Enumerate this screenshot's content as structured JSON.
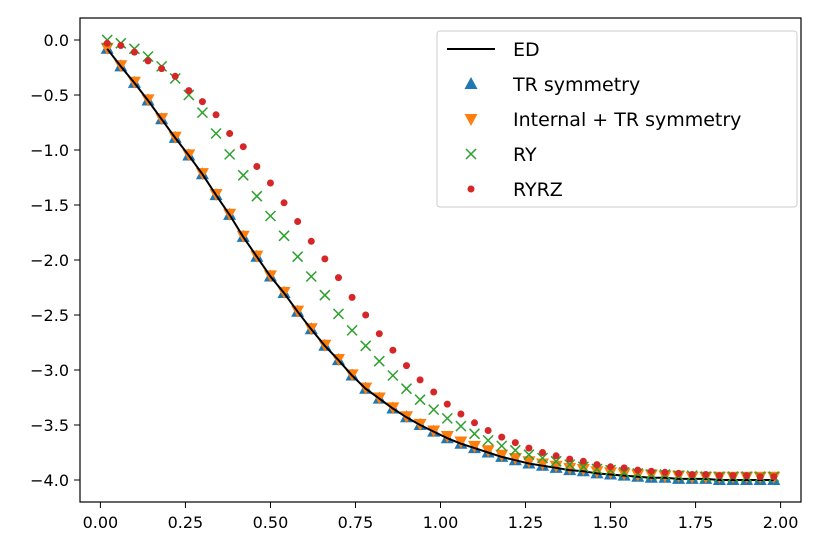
{
  "chart_data": {
    "type": "line",
    "title": "",
    "xlabel": "",
    "ylabel": "",
    "xlim": [
      -0.06,
      2.06
    ],
    "ylim": [
      -4.2,
      0.2
    ],
    "xticks": [
      "0.00",
      "0.25",
      "0.50",
      "0.75",
      "1.00",
      "1.25",
      "1.50",
      "1.75",
      "2.00"
    ],
    "yticks": [
      "0.0",
      "−0.5",
      "−1.0",
      "−1.5",
      "−2.0",
      "−2.5",
      "−3.0",
      "−3.5",
      "−4.0"
    ],
    "legend_position": "top-right",
    "series": [
      {
        "name": "ED",
        "style": "line",
        "color": "#000000",
        "x": [
          0.02,
          0.06,
          0.1,
          0.14,
          0.18,
          0.22,
          0.26,
          0.3,
          0.34,
          0.38,
          0.42,
          0.46,
          0.5,
          0.54,
          0.58,
          0.62,
          0.66,
          0.7,
          0.74,
          0.78,
          0.82,
          0.86,
          0.9,
          0.94,
          0.98,
          1.02,
          1.06,
          1.1,
          1.14,
          1.18,
          1.22,
          1.26,
          1.3,
          1.34,
          1.38,
          1.42,
          1.46,
          1.5,
          1.54,
          1.58,
          1.62,
          1.66,
          1.7,
          1.74,
          1.78,
          1.82,
          1.86,
          1.9,
          1.94,
          1.98
        ],
        "y": [
          -0.08,
          -0.24,
          -0.39,
          -0.55,
          -0.72,
          -0.89,
          -1.05,
          -1.22,
          -1.41,
          -1.59,
          -1.79,
          -1.97,
          -2.15,
          -2.3,
          -2.47,
          -2.63,
          -2.78,
          -2.91,
          -3.05,
          -3.17,
          -3.26,
          -3.35,
          -3.43,
          -3.5,
          -3.56,
          -3.62,
          -3.67,
          -3.71,
          -3.75,
          -3.79,
          -3.82,
          -3.85,
          -3.87,
          -3.89,
          -3.91,
          -3.92,
          -3.94,
          -3.95,
          -3.96,
          -3.97,
          -3.98,
          -3.98,
          -3.99,
          -3.99,
          -3.99,
          -4.0,
          -4.0,
          -4.0,
          -4.0,
          -4.0
        ]
      },
      {
        "name": "TR symmetry",
        "style": "triangle-up",
        "color": "#1f77b4",
        "x": [
          0.02,
          0.06,
          0.1,
          0.14,
          0.18,
          0.22,
          0.26,
          0.3,
          0.34,
          0.38,
          0.42,
          0.46,
          0.5,
          0.54,
          0.58,
          0.62,
          0.66,
          0.7,
          0.74,
          0.78,
          0.82,
          0.86,
          0.9,
          0.94,
          0.98,
          1.02,
          1.06,
          1.1,
          1.14,
          1.18,
          1.22,
          1.26,
          1.3,
          1.34,
          1.38,
          1.42,
          1.46,
          1.5,
          1.54,
          1.58,
          1.62,
          1.66,
          1.7,
          1.74,
          1.78,
          1.82,
          1.86,
          1.9,
          1.94,
          1.98
        ],
        "y": [
          -0.08,
          -0.24,
          -0.39,
          -0.55,
          -0.72,
          -0.89,
          -1.05,
          -1.22,
          -1.41,
          -1.59,
          -1.79,
          -1.97,
          -2.15,
          -2.3,
          -2.47,
          -2.63,
          -2.78,
          -2.91,
          -3.05,
          -3.17,
          -3.26,
          -3.35,
          -3.43,
          -3.5,
          -3.56,
          -3.62,
          -3.67,
          -3.71,
          -3.75,
          -3.79,
          -3.82,
          -3.85,
          -3.87,
          -3.89,
          -3.91,
          -3.92,
          -3.94,
          -3.95,
          -3.96,
          -3.97,
          -3.98,
          -3.98,
          -3.99,
          -3.99,
          -3.99,
          -4.0,
          -4.0,
          -4.0,
          -4.0,
          -4.0
        ]
      },
      {
        "name": "Internal + TR symmetry",
        "style": "triangle-down",
        "color": "#ff7f0e",
        "x": [
          0.02,
          0.06,
          0.1,
          0.14,
          0.18,
          0.22,
          0.26,
          0.3,
          0.34,
          0.38,
          0.42,
          0.46,
          0.5,
          0.54,
          0.58,
          0.62,
          0.66,
          0.7,
          0.74,
          0.78,
          0.82,
          0.86,
          0.9,
          0.94,
          0.98,
          1.02,
          1.06,
          1.1,
          1.14,
          1.18,
          1.22,
          1.26,
          1.3,
          1.34,
          1.38,
          1.42,
          1.46,
          1.5,
          1.54,
          1.58,
          1.62,
          1.66,
          1.7,
          1.74,
          1.78,
          1.82,
          1.86,
          1.9,
          1.94,
          1.98
        ],
        "y": [
          -0.07,
          -0.23,
          -0.38,
          -0.54,
          -0.71,
          -0.88,
          -1.04,
          -1.21,
          -1.4,
          -1.58,
          -1.78,
          -1.96,
          -2.14,
          -2.29,
          -2.46,
          -2.62,
          -2.77,
          -2.9,
          -3.04,
          -3.16,
          -3.25,
          -3.34,
          -3.42,
          -3.49,
          -3.55,
          -3.6,
          -3.65,
          -3.69,
          -3.73,
          -3.77,
          -3.8,
          -3.83,
          -3.85,
          -3.87,
          -3.89,
          -3.9,
          -3.92,
          -3.93,
          -3.94,
          -3.95,
          -3.95,
          -3.96,
          -3.96,
          -3.97,
          -3.97,
          -3.97,
          -3.97,
          -3.97,
          -3.97,
          -3.97
        ]
      },
      {
        "name": "RY",
        "style": "x",
        "color": "#2ca02c",
        "x": [
          0.02,
          0.06,
          0.1,
          0.14,
          0.18,
          0.22,
          0.26,
          0.3,
          0.34,
          0.38,
          0.42,
          0.46,
          0.5,
          0.54,
          0.58,
          0.62,
          0.66,
          0.7,
          0.74,
          0.78,
          0.82,
          0.86,
          0.9,
          0.94,
          0.98,
          1.02,
          1.06,
          1.1,
          1.14,
          1.18,
          1.22,
          1.26,
          1.3,
          1.34,
          1.38,
          1.42,
          1.46,
          1.5,
          1.54,
          1.58,
          1.62,
          1.66,
          1.7,
          1.74,
          1.78,
          1.82,
          1.86,
          1.9,
          1.94,
          1.98
        ],
        "y": [
          0.0,
          -0.03,
          -0.08,
          -0.15,
          -0.24,
          -0.35,
          -0.5,
          -0.66,
          -0.85,
          -1.04,
          -1.23,
          -1.42,
          -1.6,
          -1.78,
          -1.97,
          -2.15,
          -2.32,
          -2.49,
          -2.64,
          -2.78,
          -2.92,
          -3.05,
          -3.17,
          -3.27,
          -3.36,
          -3.44,
          -3.51,
          -3.58,
          -3.64,
          -3.69,
          -3.73,
          -3.77,
          -3.8,
          -3.83,
          -3.86,
          -3.88,
          -3.9,
          -3.91,
          -3.93,
          -3.94,
          -3.95,
          -3.95,
          -3.96,
          -3.96,
          -3.97,
          -3.97,
          -3.97,
          -3.97,
          -3.97,
          -3.97
        ]
      },
      {
        "name": "RYRZ",
        "style": "dot",
        "color": "#d62728",
        "x": [
          0.02,
          0.06,
          0.1,
          0.14,
          0.18,
          0.22,
          0.26,
          0.3,
          0.34,
          0.38,
          0.42,
          0.46,
          0.5,
          0.54,
          0.58,
          0.62,
          0.66,
          0.7,
          0.74,
          0.78,
          0.82,
          0.86,
          0.9,
          0.94,
          0.98,
          1.02,
          1.06,
          1.1,
          1.14,
          1.18,
          1.22,
          1.26,
          1.3,
          1.34,
          1.38,
          1.42,
          1.46,
          1.5,
          1.54,
          1.58,
          1.62,
          1.66,
          1.7,
          1.74,
          1.78,
          1.82,
          1.86,
          1.9,
          1.94,
          1.98
        ],
        "y": [
          -0.03,
          -0.05,
          -0.11,
          -0.19,
          -0.26,
          -0.33,
          -0.46,
          -0.56,
          -0.68,
          -0.85,
          -0.97,
          -1.15,
          -1.3,
          -1.48,
          -1.65,
          -1.83,
          -1.99,
          -2.16,
          -2.34,
          -2.5,
          -2.67,
          -2.82,
          -2.96,
          -3.09,
          -3.2,
          -3.31,
          -3.4,
          -3.48,
          -3.55,
          -3.61,
          -3.66,
          -3.71,
          -3.75,
          -3.78,
          -3.81,
          -3.83,
          -3.86,
          -3.88,
          -3.89,
          -3.91,
          -3.92,
          -3.93,
          -3.94,
          -3.95,
          -3.95,
          -3.96,
          -3.96,
          -3.96,
          -3.97,
          -3.97
        ]
      }
    ]
  }
}
